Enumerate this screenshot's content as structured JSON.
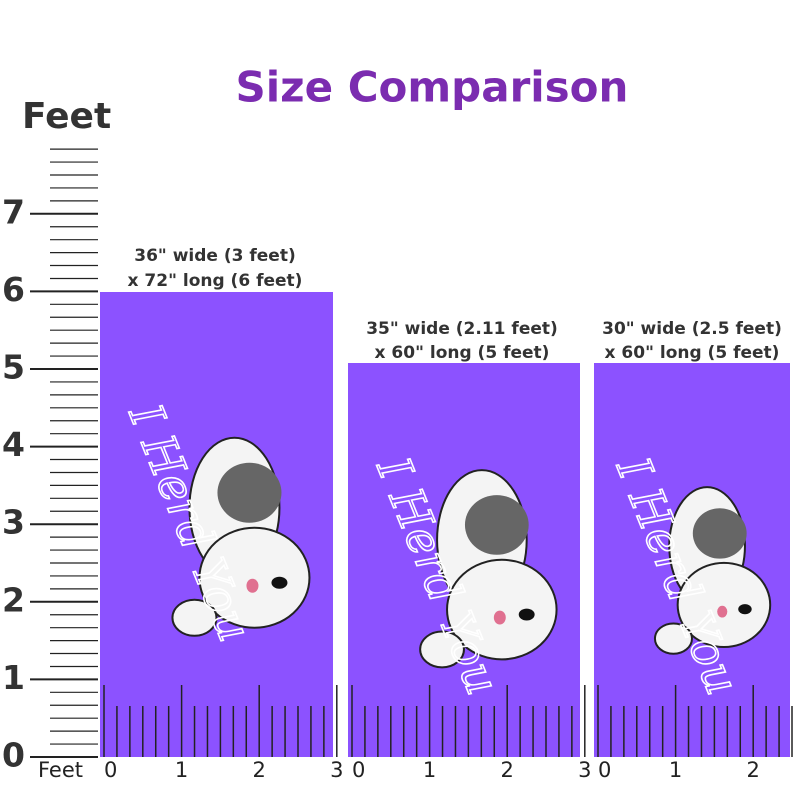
{
  "header": {
    "title": "Size Comparison"
  },
  "scale": {
    "unit": "Feet",
    "labels": [
      "0",
      "1",
      "2",
      "3",
      "4",
      "5",
      "6",
      "7"
    ]
  },
  "towels": [
    {
      "caption": [
        "36\" wide (3 feet)",
        "x 72\" long  (6 feet)"
      ],
      "art_text": "I Herd You",
      "axis_unit": "Feet",
      "x_labels": [
        "0",
        "1",
        "2",
        "3"
      ]
    },
    {
      "caption": [
        "35\" wide (2.11 feet)",
        "x 60\" long  (5 feet)"
      ],
      "art_text": "I Herd You",
      "x_labels": [
        "0",
        "1",
        "2",
        "3"
      ]
    },
    {
      "caption": [
        "30\" wide (2.5 feet)",
        "x 60\" long  (5 feet)"
      ],
      "art_text": "I Herd You",
      "x_labels": [
        "0",
        "1",
        "2"
      ]
    }
  ]
}
